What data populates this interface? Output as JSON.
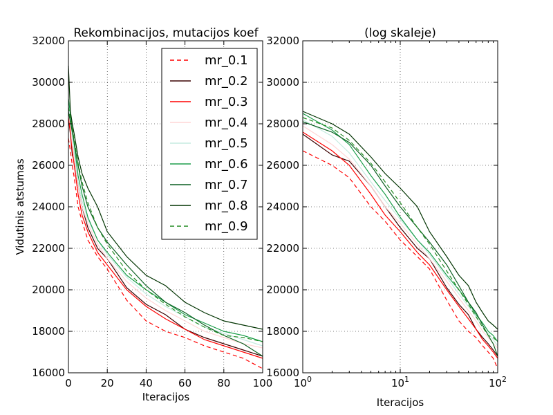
{
  "chart_data": [
    {
      "type": "line",
      "title": "Rekombinacijos, mutacijos koef",
      "xlabel": "Iteracijos",
      "ylabel": "Vidutinis atstumas",
      "xscale": "linear",
      "xlim": [
        0,
        100
      ],
      "ylim": [
        16000,
        32000
      ],
      "xticks": [
        0,
        20,
        40,
        60,
        80,
        100
      ],
      "xtick_labels": [
        "0",
        "20",
        "40",
        "60",
        "80",
        "100"
      ],
      "yticks": [
        16000,
        18000,
        20000,
        22000,
        24000,
        26000,
        28000,
        30000,
        32000
      ],
      "ytick_labels": [
        "16000",
        "18000",
        "20000",
        "22000",
        "24000",
        "26000",
        "28000",
        "30000",
        "32000"
      ],
      "grid": true,
      "legend_position": "top-right",
      "x": [
        0,
        1,
        2,
        3,
        5,
        7,
        10,
        15,
        20,
        30,
        40,
        50,
        60,
        70,
        80,
        90,
        100
      ],
      "series": [
        {
          "name": "mr_0.1",
          "color": "#ff0000",
          "dash": "dashed",
          "values": [
            27300,
            26700,
            26000,
            25400,
            24000,
            23300,
            22400,
            21600,
            21000,
            19500,
            18500,
            18000,
            17700,
            17300,
            17000,
            16700,
            16200
          ]
        },
        {
          "name": "mr_0.2",
          "color": "#3a0000",
          "dash": "solid",
          "values": [
            28300,
            27500,
            26500,
            26200,
            25000,
            24000,
            23000,
            22000,
            21500,
            20100,
            19300,
            18800,
            18100,
            17700,
            17400,
            17100,
            16800
          ]
        },
        {
          "name": "mr_0.3",
          "color": "#ff0000",
          "dash": "solid",
          "values": [
            28400,
            27600,
            26700,
            26000,
            24600,
            23600,
            22800,
            21800,
            21200,
            20000,
            19200,
            18600,
            18100,
            17600,
            17300,
            17000,
            16700
          ]
        },
        {
          "name": "mr_0.4",
          "color": "#ffd6d6",
          "dash": "solid",
          "values": [
            28600,
            27900,
            27000,
            26300,
            25000,
            24000,
            23200,
            22200,
            21500,
            20400,
            19600,
            19000,
            18500,
            18000,
            17700,
            17400,
            17200
          ]
        },
        {
          "name": "mr_0.5",
          "color": "#c6ebe0",
          "dash": "solid",
          "values": [
            28900,
            28200,
            27400,
            26600,
            25200,
            24300,
            23400,
            22400,
            21700,
            20600,
            19800,
            19200,
            18700,
            18200,
            17900,
            17600,
            17300
          ]
        },
        {
          "name": "mr_0.6",
          "color": "#1b9e4b",
          "dash": "solid",
          "values": [
            29200,
            28500,
            27700,
            27000,
            25500,
            24600,
            23500,
            22400,
            21800,
            20700,
            20000,
            19400,
            18800,
            18400,
            18000,
            17800,
            17500
          ]
        },
        {
          "name": "mr_0.7",
          "color": "#0a5f20",
          "dash": "solid",
          "values": [
            28600,
            28100,
            27600,
            27100,
            26000,
            25000,
            24000,
            23000,
            22300,
            21200,
            20200,
            19400,
            18900,
            18300,
            17800,
            17400,
            16800
          ]
        },
        {
          "name": "mr_0.8",
          "color": "#003300",
          "dash": "solid",
          "values": [
            30800,
            28600,
            28000,
            27500,
            26400,
            25600,
            24900,
            24000,
            22800,
            21600,
            20700,
            20200,
            19400,
            18900,
            18500,
            18300,
            18100
          ]
        },
        {
          "name": "mr_0.9",
          "color": "#228b22",
          "dash": "dashed",
          "values": [
            28800,
            28300,
            27800,
            27200,
            26100,
            25200,
            24200,
            23000,
            22200,
            20900,
            20000,
            19300,
            18700,
            18200,
            17800,
            17700,
            17500
          ]
        }
      ]
    },
    {
      "type": "line",
      "title": "(log skaleje)",
      "xlabel": "Iteracijos",
      "ylabel": "",
      "xscale": "log",
      "xlim": [
        1,
        100
      ],
      "ylim": [
        16000,
        32000
      ],
      "xticks": [
        1,
        10,
        100
      ],
      "xtick_labels": [
        {
          "base": "10",
          "exp": "0"
        },
        {
          "base": "10",
          "exp": "1"
        },
        {
          "base": "10",
          "exp": "2"
        }
      ],
      "yticks": [
        16000,
        18000,
        20000,
        22000,
        24000,
        26000,
        28000,
        30000,
        32000
      ],
      "ytick_labels": [
        "16000",
        "18000",
        "20000",
        "22000",
        "24000",
        "26000",
        "28000",
        "30000",
        "32000"
      ],
      "grid": true,
      "same_series_as": 0
    }
  ]
}
